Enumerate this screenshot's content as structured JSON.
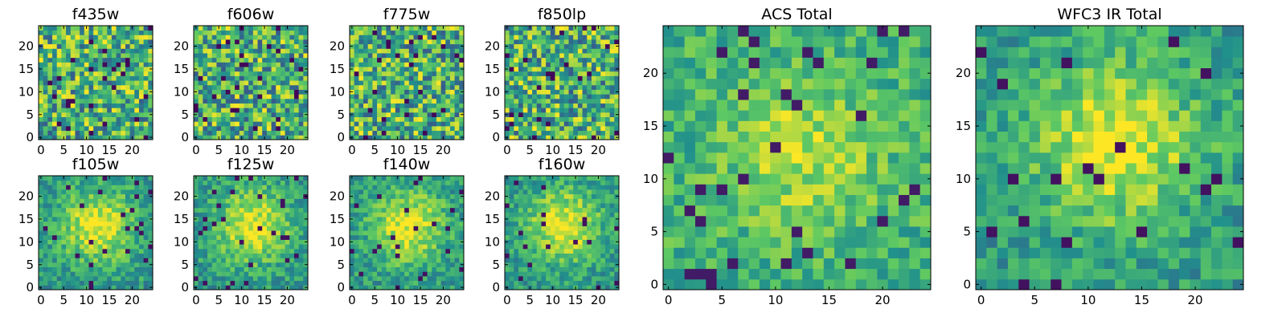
{
  "figure": {
    "colormap": "viridis",
    "colormap_stops": [
      "#440154",
      "#3b528b",
      "#21918c",
      "#5ec962",
      "#fde725"
    ]
  },
  "chart_data": [
    {
      "type": "heatmap",
      "title": "f435w",
      "x_ticks": [
        0,
        5,
        10,
        15,
        20
      ],
      "y_ticks": [
        0,
        5,
        10,
        15,
        20
      ],
      "xlim": [
        0,
        24
      ],
      "ylim": [
        0,
        24
      ],
      "grid_size": 25,
      "structure": "noise",
      "seed": 11
    },
    {
      "type": "heatmap",
      "title": "f606w",
      "x_ticks": [
        0,
        5,
        10,
        15,
        20
      ],
      "y_ticks": [
        0,
        5,
        10,
        15,
        20
      ],
      "xlim": [
        0,
        24
      ],
      "ylim": [
        0,
        24
      ],
      "grid_size": 25,
      "structure": "noise",
      "seed": 23
    },
    {
      "type": "heatmap",
      "title": "f775w",
      "x_ticks": [
        0,
        5,
        10,
        15,
        20
      ],
      "y_ticks": [
        0,
        5,
        10,
        15,
        20
      ],
      "xlim": [
        0,
        24
      ],
      "ylim": [
        0,
        24
      ],
      "grid_size": 25,
      "structure": "noise",
      "seed": 37
    },
    {
      "type": "heatmap",
      "title": "f850lp",
      "x_ticks": [
        0,
        5,
        10,
        15,
        20
      ],
      "y_ticks": [
        0,
        5,
        10,
        15,
        20
      ],
      "xlim": [
        0,
        24
      ],
      "ylim": [
        0,
        24
      ],
      "grid_size": 25,
      "structure": "noise",
      "seed": 41
    },
    {
      "type": "heatmap",
      "title": "f105w",
      "x_ticks": [
        0,
        5,
        10,
        15,
        20
      ],
      "y_ticks": [
        0,
        5,
        10,
        15,
        20
      ],
      "xlim": [
        0,
        24
      ],
      "ylim": [
        0,
        24
      ],
      "grid_size": 25,
      "structure": "centered-source",
      "seed": 53
    },
    {
      "type": "heatmap",
      "title": "f125w",
      "x_ticks": [
        0,
        5,
        10,
        15,
        20
      ],
      "y_ticks": [
        0,
        5,
        10,
        15,
        20
      ],
      "xlim": [
        0,
        24
      ],
      "ylim": [
        0,
        24
      ],
      "grid_size": 25,
      "structure": "centered-source",
      "seed": 67
    },
    {
      "type": "heatmap",
      "title": "f140w",
      "x_ticks": [
        0,
        5,
        10,
        15,
        20
      ],
      "y_ticks": [
        0,
        5,
        10,
        15,
        20
      ],
      "xlim": [
        0,
        24
      ],
      "ylim": [
        0,
        24
      ],
      "grid_size": 25,
      "structure": "centered-source",
      "seed": 71
    },
    {
      "type": "heatmap",
      "title": "f160w",
      "x_ticks": [
        0,
        5,
        10,
        15,
        20
      ],
      "y_ticks": [
        0,
        5,
        10,
        15,
        20
      ],
      "xlim": [
        0,
        24
      ],
      "ylim": [
        0,
        24
      ],
      "grid_size": 25,
      "structure": "centered-source",
      "seed": 89
    },
    {
      "type": "heatmap",
      "title": "ACS Total",
      "x_ticks": [
        0,
        5,
        10,
        15,
        20
      ],
      "y_ticks": [
        0,
        5,
        10,
        15,
        20
      ],
      "xlim": [
        0,
        24
      ],
      "ylim": [
        0,
        24
      ],
      "grid_size": 25,
      "structure": "noise-with-faint-source",
      "seed": 97
    },
    {
      "type": "heatmap",
      "title": "WFC3 IR Total",
      "x_ticks": [
        0,
        5,
        10,
        15,
        20
      ],
      "y_ticks": [
        0,
        5,
        10,
        15,
        20
      ],
      "xlim": [
        0,
        24
      ],
      "ylim": [
        0,
        24
      ],
      "grid_size": 25,
      "structure": "centered-source",
      "seed": 103
    }
  ]
}
